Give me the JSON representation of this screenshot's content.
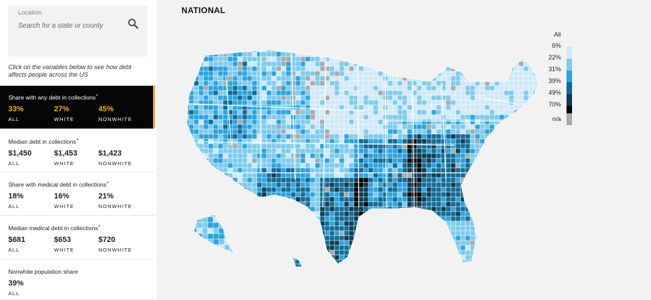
{
  "search": {
    "label": "Location",
    "placeholder": "Search for a state or county"
  },
  "hint": "Click on the variables below to see how debt affects people across the US",
  "variables": [
    {
      "title": "Share with any debt in collections",
      "marker": "+",
      "active": true,
      "stats": [
        {
          "value": "33%",
          "label": "ALL"
        },
        {
          "value": "27%",
          "label": "WHITE"
        },
        {
          "value": "45%",
          "label": "NONWHITE"
        }
      ]
    },
    {
      "title": "Median debt in collections",
      "marker": "+",
      "active": false,
      "stats": [
        {
          "value": "$1,450",
          "label": "ALL"
        },
        {
          "value": "$1,453",
          "label": "WHITE"
        },
        {
          "value": "$1,423",
          "label": "NONWHITE"
        }
      ]
    },
    {
      "title": "Share with medical debt in collections",
      "marker": "+",
      "active": false,
      "stats": [
        {
          "value": "18%",
          "label": "ALL"
        },
        {
          "value": "16%",
          "label": "WHITE"
        },
        {
          "value": "21%",
          "label": "NONWHITE"
        }
      ]
    },
    {
      "title": "Median medical debt in collections",
      "marker": "+",
      "active": false,
      "stats": [
        {
          "value": "$681",
          "label": "ALL"
        },
        {
          "value": "$653",
          "label": "WHITE"
        },
        {
          "value": "$720",
          "label": "NONWHITE"
        }
      ]
    },
    {
      "title": "Nonwhite population share",
      "marker": "",
      "active": false,
      "stats": [
        {
          "value": "39%",
          "label": "ALL"
        }
      ]
    }
  ],
  "map": {
    "title": "NATIONAL",
    "legend_title": "All",
    "legend": [
      {
        "label": "6%",
        "color": "#cfe9f7"
      },
      {
        "label": "22%",
        "color": "#7dcbee"
      },
      {
        "label": "31%",
        "color": "#2aa4de"
      },
      {
        "label": "39%",
        "color": "#126b94"
      },
      {
        "label": "49%",
        "color": "#0b3d55"
      },
      {
        "label": "70%",
        "color": "#000000"
      }
    ],
    "na": {
      "label": "n/a",
      "color": "#aaaaaa"
    },
    "accent": "#f0b400"
  }
}
